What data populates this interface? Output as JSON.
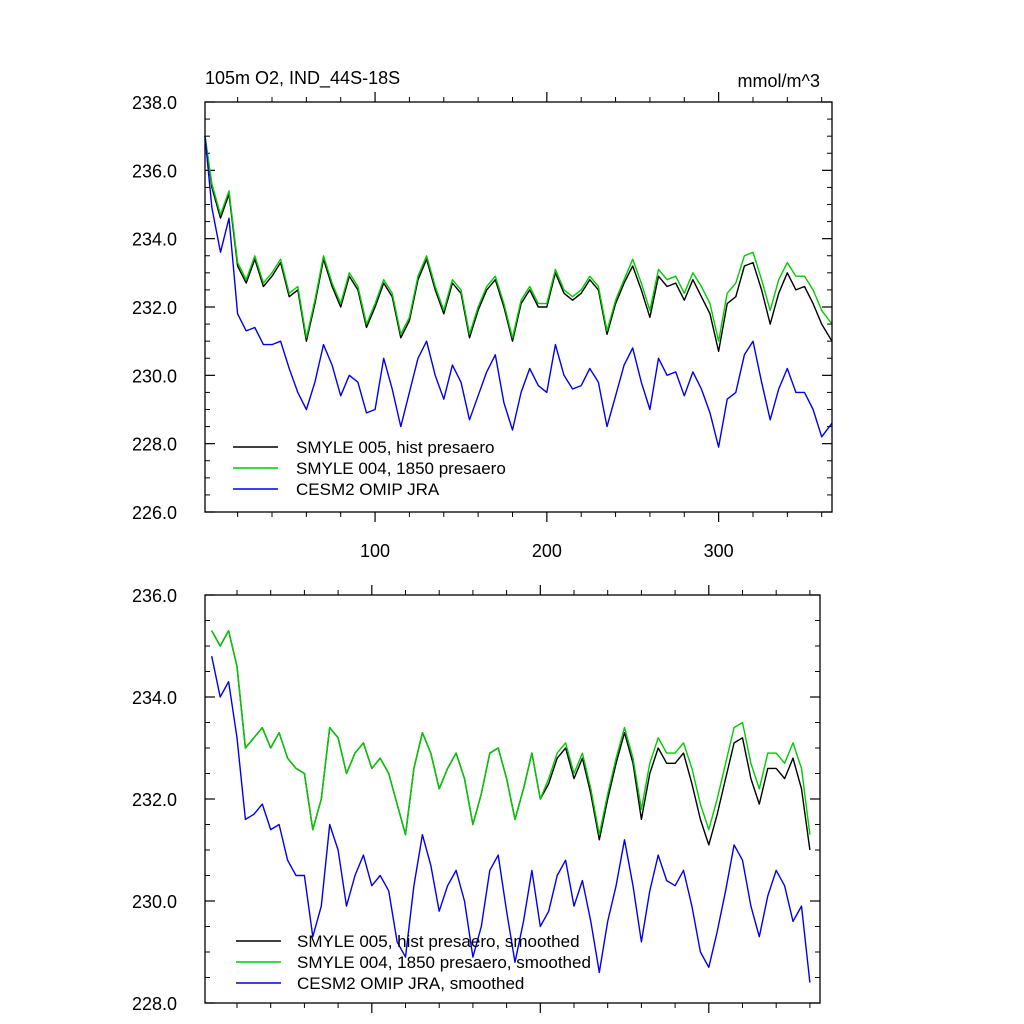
{
  "chart_data": [
    {
      "type": "line",
      "title": "105m O2, IND_44S-18S",
      "units": "mmol/m^3",
      "xlabel": "",
      "ylabel": "",
      "xlim": [
        1,
        366
      ],
      "ylim": [
        226.0,
        238.0
      ],
      "x_ticks": [
        100,
        200,
        300
      ],
      "x_tick_labels": [
        "100",
        "200",
        "300"
      ],
      "y_ticks": [
        226.0,
        228.0,
        230.0,
        232.0,
        234.0,
        236.0,
        238.0
      ],
      "y_tick_labels": [
        "226.0",
        "228.0",
        "230.0",
        "232.0",
        "234.0",
        "236.0",
        "238.0"
      ],
      "legend_position": "bottom-left",
      "series": [
        {
          "name": "SMYLE 005, hist presaero",
          "color": "#000000",
          "x": [
            1,
            5,
            10,
            15,
            20,
            25,
            30,
            35,
            40,
            45,
            50,
            55,
            60,
            65,
            70,
            75,
            80,
            85,
            90,
            95,
            100,
            105,
            110,
            115,
            120,
            125,
            130,
            135,
            140,
            145,
            150,
            155,
            160,
            165,
            170,
            175,
            180,
            185,
            190,
            195,
            200,
            205,
            210,
            215,
            220,
            225,
            230,
            235,
            240,
            245,
            250,
            255,
            260,
            265,
            270,
            275,
            280,
            285,
            290,
            295,
            300,
            305,
            310,
            315,
            320,
            325,
            330,
            335,
            340,
            345,
            350,
            355,
            360,
            366
          ],
          "values": [
            237.0,
            235.5,
            234.6,
            235.3,
            233.2,
            232.7,
            233.4,
            232.6,
            232.9,
            233.3,
            232.3,
            232.5,
            231.0,
            232.1,
            233.4,
            232.6,
            232.0,
            232.9,
            232.5,
            231.4,
            232.0,
            232.7,
            232.3,
            231.1,
            231.6,
            232.8,
            233.4,
            232.5,
            231.8,
            232.7,
            232.4,
            231.1,
            231.9,
            232.5,
            232.8,
            232.0,
            231.0,
            232.1,
            232.5,
            232.0,
            232.0,
            233.0,
            232.4,
            232.2,
            232.4,
            232.8,
            232.5,
            231.2,
            232.1,
            232.7,
            233.2,
            232.5,
            231.7,
            232.9,
            232.6,
            232.7,
            232.2,
            232.8,
            232.3,
            231.8,
            230.7,
            232.1,
            232.3,
            233.2,
            233.3,
            232.5,
            231.5,
            232.4,
            233.0,
            232.5,
            232.6,
            232.1,
            231.5,
            231.0
          ]
        },
        {
          "name": "SMYLE 004, 1850 presaero",
          "color": "#00cc00",
          "x": [
            1,
            5,
            10,
            15,
            20,
            25,
            30,
            35,
            40,
            45,
            50,
            55,
            60,
            65,
            70,
            75,
            80,
            85,
            90,
            95,
            100,
            105,
            110,
            115,
            120,
            125,
            130,
            135,
            140,
            145,
            150,
            155,
            160,
            165,
            170,
            175,
            180,
            185,
            190,
            195,
            200,
            205,
            210,
            215,
            220,
            225,
            230,
            235,
            240,
            245,
            250,
            255,
            260,
            265,
            270,
            275,
            280,
            285,
            290,
            295,
            300,
            305,
            310,
            315,
            320,
            325,
            330,
            335,
            340,
            345,
            350,
            355,
            360,
            366
          ],
          "values": [
            237.0,
            235.6,
            234.7,
            235.4,
            233.3,
            232.8,
            233.5,
            232.7,
            233.0,
            233.4,
            232.4,
            232.6,
            231.1,
            232.2,
            233.5,
            232.7,
            232.1,
            233.0,
            232.6,
            231.5,
            232.1,
            232.8,
            232.4,
            231.2,
            231.7,
            232.9,
            233.5,
            232.6,
            231.9,
            232.8,
            232.5,
            231.2,
            232.0,
            232.6,
            232.9,
            232.1,
            231.1,
            232.2,
            232.6,
            232.1,
            232.1,
            233.1,
            232.5,
            232.3,
            232.5,
            232.9,
            232.6,
            231.3,
            232.2,
            232.8,
            233.4,
            232.7,
            231.9,
            233.1,
            232.8,
            232.9,
            232.4,
            233.0,
            232.6,
            232.1,
            231.0,
            232.4,
            232.7,
            233.5,
            233.6,
            232.8,
            231.9,
            232.8,
            233.3,
            232.9,
            232.9,
            232.5,
            231.9,
            231.5
          ]
        },
        {
          "name": "CESM2 OMIP JRA",
          "color": "#0000ee",
          "x": [
            1,
            5,
            10,
            15,
            20,
            25,
            30,
            35,
            40,
            45,
            50,
            55,
            60,
            65,
            70,
            75,
            80,
            85,
            90,
            95,
            100,
            105,
            110,
            115,
            120,
            125,
            130,
            135,
            140,
            145,
            150,
            155,
            160,
            165,
            170,
            175,
            180,
            185,
            190,
            195,
            200,
            205,
            210,
            215,
            220,
            225,
            230,
            235,
            240,
            245,
            250,
            255,
            260,
            265,
            270,
            275,
            280,
            285,
            290,
            295,
            300,
            305,
            310,
            315,
            320,
            325,
            330,
            335,
            340,
            345,
            350,
            355,
            360,
            366
          ],
          "values": [
            237.0,
            234.9,
            233.6,
            234.6,
            231.8,
            231.3,
            231.4,
            230.9,
            230.9,
            231.0,
            230.2,
            229.5,
            229.0,
            229.8,
            230.9,
            230.3,
            229.4,
            230.0,
            229.8,
            228.9,
            229.0,
            230.5,
            229.6,
            228.5,
            229.5,
            230.5,
            231.0,
            230.0,
            229.3,
            230.3,
            229.8,
            228.7,
            229.4,
            230.1,
            230.6,
            229.2,
            228.4,
            229.5,
            230.2,
            229.7,
            229.5,
            230.9,
            230.0,
            229.6,
            229.7,
            230.2,
            229.8,
            228.5,
            229.4,
            230.3,
            230.8,
            229.8,
            229.0,
            230.5,
            230.0,
            230.1,
            229.4,
            230.1,
            229.6,
            228.9,
            227.9,
            229.3,
            229.5,
            230.6,
            231.0,
            229.8,
            228.7,
            229.6,
            230.2,
            229.5,
            229.5,
            229.0,
            228.2,
            228.6
          ]
        }
      ]
    },
    {
      "type": "line",
      "title": "",
      "xlabel": "",
      "ylabel": "",
      "xlim": [
        1,
        366
      ],
      "ylim": [
        228.0,
        236.0
      ],
      "x_ticks": [
        100,
        200,
        300
      ],
      "y_ticks": [
        228.0,
        230.0,
        232.0,
        234.0,
        236.0
      ],
      "y_tick_labels": [
        "228.0",
        "230.0",
        "232.0",
        "234.0",
        "236.0"
      ],
      "legend_position": "bottom-left",
      "series": [
        {
          "name": "SMYLE 005, hist presaero, smoothed",
          "color": "#000000",
          "x": [
            5,
            10,
            15,
            20,
            25,
            30,
            35,
            40,
            45,
            50,
            55,
            60,
            65,
            70,
            75,
            80,
            85,
            90,
            95,
            100,
            105,
            110,
            115,
            120,
            125,
            130,
            135,
            140,
            145,
            150,
            155,
            160,
            165,
            170,
            175,
            180,
            185,
            190,
            195,
            200,
            205,
            210,
            215,
            220,
            225,
            230,
            235,
            240,
            245,
            250,
            255,
            260,
            265,
            270,
            275,
            280,
            285,
            290,
            295,
            300,
            305,
            310,
            315,
            320,
            325,
            330,
            335,
            340,
            345,
            350,
            355,
            360
          ],
          "values": [
            235.3,
            235.0,
            235.3,
            234.6,
            233.0,
            233.2,
            233.4,
            233.0,
            233.3,
            232.8,
            232.6,
            232.5,
            231.4,
            232.0,
            233.4,
            233.2,
            232.5,
            232.9,
            233.1,
            232.6,
            232.8,
            232.5,
            231.9,
            231.3,
            232.6,
            233.3,
            232.9,
            232.2,
            232.6,
            232.9,
            232.4,
            231.5,
            232.1,
            232.9,
            233.0,
            232.4,
            231.6,
            232.2,
            232.9,
            232.0,
            232.3,
            232.8,
            233.0,
            232.4,
            232.8,
            232.1,
            231.2,
            232.0,
            232.7,
            233.3,
            232.7,
            231.6,
            232.5,
            233.0,
            232.7,
            232.7,
            232.9,
            232.3,
            231.6,
            231.1,
            231.7,
            232.4,
            233.1,
            233.2,
            232.4,
            231.9,
            232.6,
            232.6,
            232.4,
            232.8,
            232.2,
            231.0
          ]
        },
        {
          "name": "SMYLE 004, 1850 presaero, smoothed",
          "color": "#00cc00",
          "x": [
            5,
            10,
            15,
            20,
            25,
            30,
            35,
            40,
            45,
            50,
            55,
            60,
            65,
            70,
            75,
            80,
            85,
            90,
            95,
            100,
            105,
            110,
            115,
            120,
            125,
            130,
            135,
            140,
            145,
            150,
            155,
            160,
            165,
            170,
            175,
            180,
            185,
            190,
            195,
            200,
            205,
            210,
            215,
            220,
            225,
            230,
            235,
            240,
            245,
            250,
            255,
            260,
            265,
            270,
            275,
            280,
            285,
            290,
            295,
            300,
            305,
            310,
            315,
            320,
            325,
            330,
            335,
            340,
            345,
            350,
            355,
            360
          ],
          "values": [
            235.3,
            235.0,
            235.3,
            234.6,
            233.0,
            233.2,
            233.4,
            233.0,
            233.3,
            232.8,
            232.6,
            232.5,
            231.4,
            232.0,
            233.4,
            233.2,
            232.5,
            232.9,
            233.1,
            232.6,
            232.8,
            232.5,
            231.9,
            231.3,
            232.6,
            233.3,
            232.9,
            232.2,
            232.6,
            232.9,
            232.4,
            231.5,
            232.1,
            232.9,
            233.0,
            232.4,
            231.6,
            232.2,
            232.9,
            232.0,
            232.4,
            232.9,
            233.1,
            232.5,
            232.9,
            232.2,
            231.3,
            232.1,
            232.8,
            233.4,
            232.8,
            231.8,
            232.7,
            233.2,
            232.9,
            232.9,
            233.1,
            232.6,
            231.9,
            231.4,
            232.0,
            232.7,
            233.4,
            233.5,
            232.7,
            232.2,
            232.9,
            232.9,
            232.7,
            233.1,
            232.6,
            231.3
          ]
        },
        {
          "name": "CESM2 OMIP JRA, smoothed",
          "color": "#0000ee",
          "x": [
            5,
            10,
            15,
            20,
            25,
            30,
            35,
            40,
            45,
            50,
            55,
            60,
            65,
            70,
            75,
            80,
            85,
            90,
            95,
            100,
            105,
            110,
            115,
            120,
            125,
            130,
            135,
            140,
            145,
            150,
            155,
            160,
            165,
            170,
            175,
            180,
            185,
            190,
            195,
            200,
            205,
            210,
            215,
            220,
            225,
            230,
            235,
            240,
            245,
            250,
            255,
            260,
            265,
            270,
            275,
            280,
            285,
            290,
            295,
            300,
            305,
            310,
            315,
            320,
            325,
            330,
            335,
            340,
            345,
            350,
            355,
            360
          ],
          "values": [
            234.8,
            234.0,
            234.3,
            233.2,
            231.6,
            231.7,
            231.9,
            231.4,
            231.5,
            230.8,
            230.5,
            230.5,
            229.3,
            229.9,
            231.5,
            231.0,
            229.9,
            230.5,
            230.9,
            230.3,
            230.5,
            230.2,
            229.2,
            228.9,
            230.3,
            231.3,
            230.7,
            229.8,
            230.3,
            230.6,
            230.0,
            228.9,
            229.5,
            230.6,
            230.9,
            229.8,
            228.8,
            229.6,
            230.6,
            229.5,
            229.8,
            230.5,
            230.8,
            229.9,
            230.4,
            229.6,
            228.6,
            229.6,
            230.3,
            231.2,
            230.3,
            229.2,
            230.2,
            230.9,
            230.4,
            230.3,
            230.6,
            229.9,
            229.0,
            228.7,
            229.4,
            230.2,
            231.1,
            230.8,
            229.9,
            229.3,
            230.1,
            230.6,
            230.3,
            229.6,
            229.9,
            228.4
          ]
        }
      ]
    }
  ]
}
